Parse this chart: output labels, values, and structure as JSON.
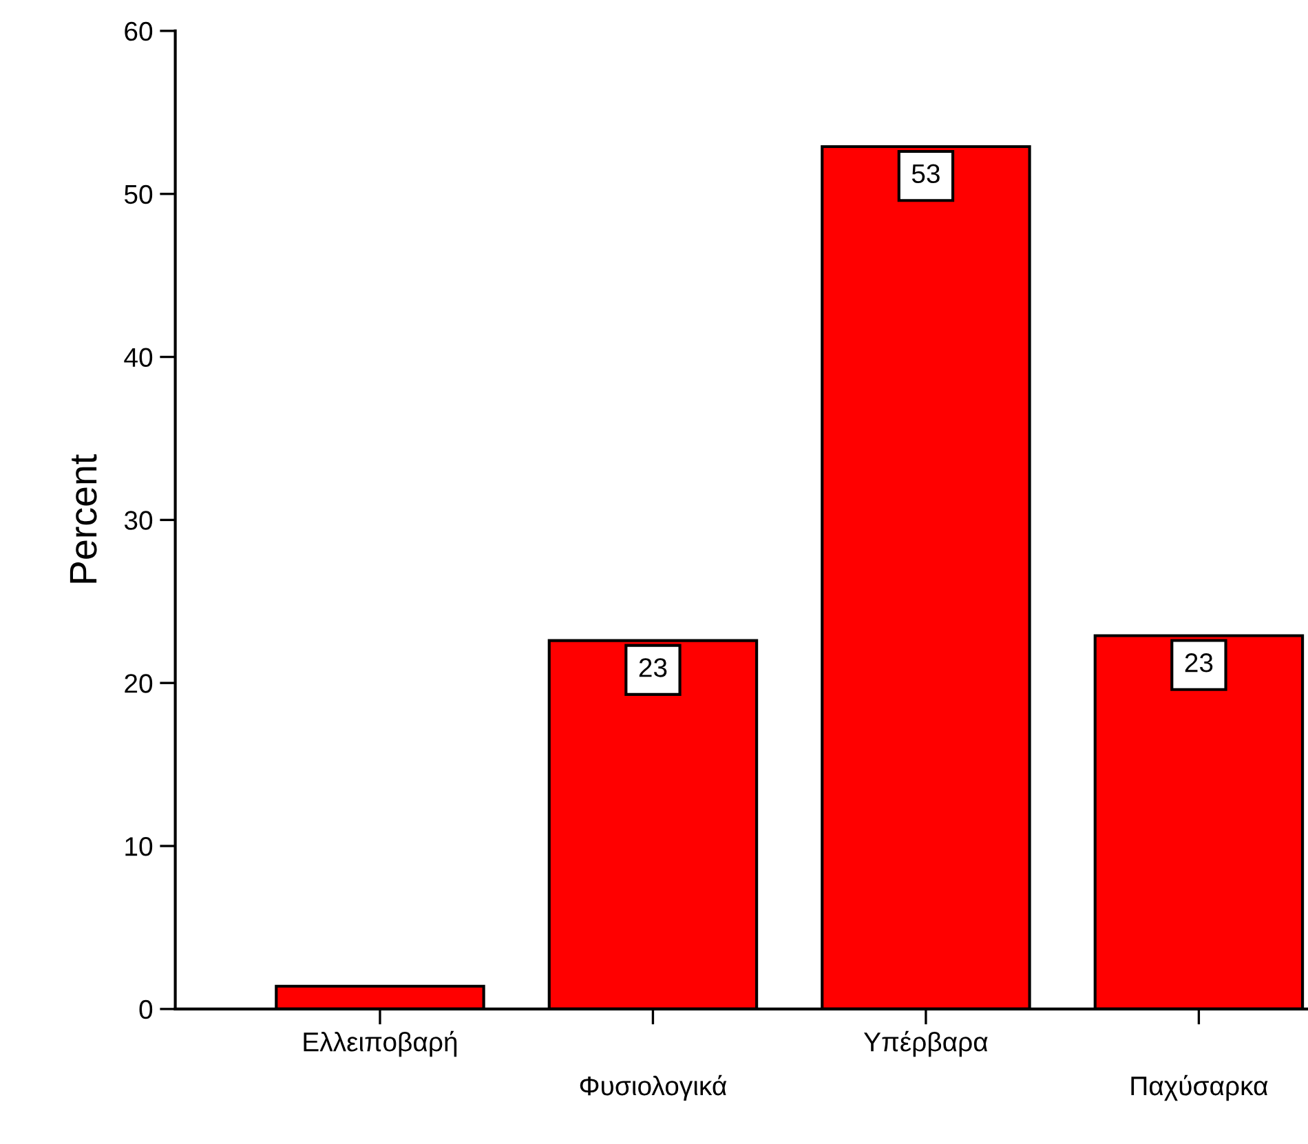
{
  "chart_data": {
    "type": "bar",
    "ylabel": "Percent",
    "categories": [
      "Ελλειποβαρή",
      "Φυσιολογικά",
      "Υπέρβαρα",
      "Παχύσαρκα"
    ],
    "values": [
      1.4,
      22.6,
      52.9,
      22.9
    ],
    "value_labels": [
      null,
      "23",
      "53",
      "23"
    ],
    "color": "#ff0000",
    "ylim": [
      0,
      60
    ],
    "yticks": [
      0,
      10,
      20,
      30,
      40,
      50,
      60
    ],
    "grid": false
  }
}
